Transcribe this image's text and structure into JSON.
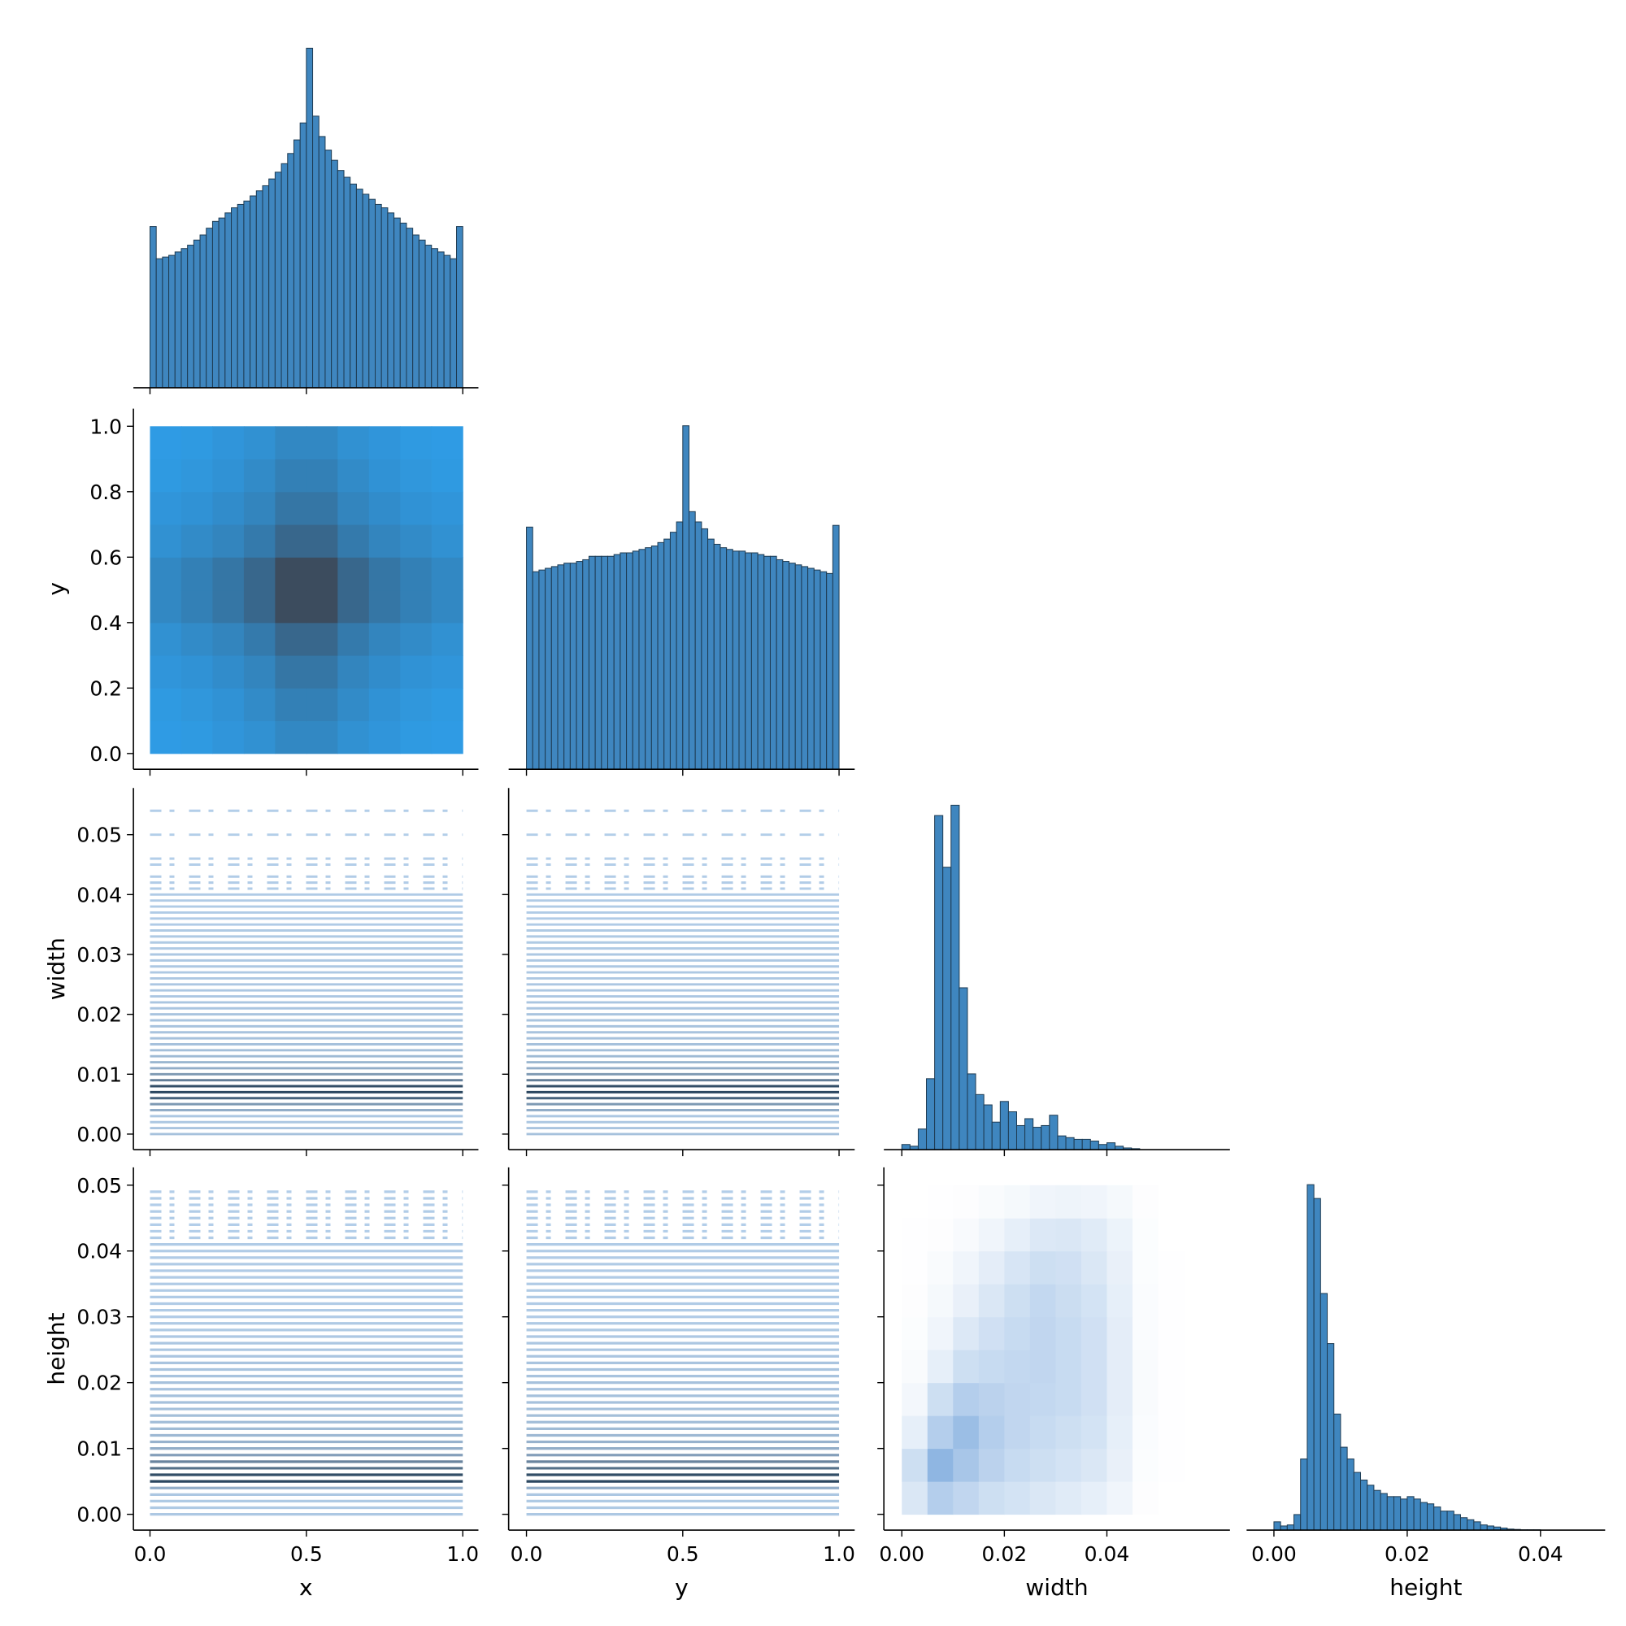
{
  "chart_data": [
    {
      "type": "histogram",
      "color": "#3f86bf",
      "edgecolor": "#1e3b52",
      "bins": [
        0,
        0.02,
        0.04,
        0.06,
        0.08,
        0.1,
        0.12,
        0.14,
        0.16,
        0.18,
        0.2,
        0.22,
        0.24,
        0.26,
        0.28,
        0.3,
        0.32,
        0.34,
        0.36,
        0.38,
        0.4,
        0.42,
        0.44,
        0.46,
        0.48,
        0.5,
        0.52,
        0.54,
        0.56,
        0.58,
        0.6,
        0.62,
        0.64,
        0.66,
        0.68,
        0.7,
        0.72,
        0.74,
        0.76,
        0.78,
        0.8,
        0.82,
        0.84,
        0.86,
        0.88,
        0.9,
        0.92,
        0.94,
        0.96,
        0.98,
        1
      ],
      "counts": [
        47.5,
        38,
        38.5,
        39,
        40,
        41,
        42,
        43.5,
        45,
        47,
        49,
        50,
        51.5,
        53,
        54,
        55,
        56.5,
        58,
        59.5,
        61.5,
        63.5,
        66,
        69,
        73,
        78,
        100,
        80,
        74,
        70,
        67,
        64,
        62,
        60,
        58.5,
        57,
        55.5,
        54,
        53,
        51.5,
        50,
        48.5,
        47,
        45,
        43.5,
        42,
        41,
        40,
        39,
        38,
        47.5
      ],
      "xlim": [
        -0.053,
        1.05
      ],
      "ylim": [
        0,
        105
      ],
      "xticks": [
        0,
        0.5,
        1
      ]
    },
    {
      "type": "hist2d",
      "colors": [
        "#2f9be4",
        "#3c4c5e"
      ],
      "xbins": [
        0,
        0.1,
        0.2,
        0.3,
        0.4,
        0.5,
        0.6,
        0.7,
        0.8,
        0.9,
        1
      ],
      "ybins": [
        0,
        0.1,
        0.2,
        0.3,
        0.4,
        0.5,
        0.6,
        0.7,
        0.8,
        0.9,
        1
      ],
      "counts": [
        [
          7,
          8,
          11,
          14,
          20,
          20,
          14,
          11,
          8,
          7
        ],
        [
          8,
          10,
          13,
          18,
          25,
          25,
          18,
          13,
          10,
          8
        ],
        [
          11,
          13,
          17,
          22,
          32,
          32,
          22,
          17,
          13,
          11
        ],
        [
          14,
          18,
          22,
          29,
          42,
          42,
          29,
          22,
          18,
          14
        ],
        [
          20,
          25,
          32,
          42,
          60,
          60,
          42,
          32,
          25,
          20
        ],
        [
          20,
          25,
          32,
          42,
          60,
          60,
          42,
          32,
          25,
          20
        ],
        [
          14,
          18,
          22,
          29,
          42,
          42,
          29,
          22,
          18,
          14
        ],
        [
          11,
          13,
          17,
          22,
          32,
          32,
          22,
          17,
          13,
          11
        ],
        [
          8,
          10,
          13,
          18,
          25,
          25,
          18,
          13,
          10,
          8
        ],
        [
          7,
          8,
          11,
          14,
          20,
          20,
          14,
          11,
          8,
          7
        ]
      ],
      "xlim": [
        -0.053,
        1.05
      ],
      "ylim": [
        -0.048,
        1.054
      ],
      "xticks": [
        0,
        0.5,
        1
      ],
      "ylabel": "y",
      "yticks": [
        {
          "value": 0,
          "label": "0.0"
        },
        {
          "value": 0.2,
          "label": "0.2"
        },
        {
          "value": 0.4,
          "label": "0.4"
        },
        {
          "value": 0.6,
          "label": "0.6"
        },
        {
          "value": 0.8,
          "label": "0.8"
        },
        {
          "value": 1,
          "label": "1.0"
        }
      ]
    },
    {
      "type": "histogram",
      "color": "#3f86bf",
      "edgecolor": "#1e3b52",
      "bins": [
        0,
        0.02,
        0.04,
        0.06,
        0.08,
        0.1,
        0.12,
        0.14,
        0.16,
        0.18,
        0.2,
        0.22,
        0.24,
        0.26,
        0.28,
        0.3,
        0.32,
        0.34,
        0.36,
        0.38,
        0.4,
        0.42,
        0.44,
        0.46,
        0.48,
        0.5,
        0.52,
        0.54,
        0.56,
        0.58,
        0.6,
        0.62,
        0.64,
        0.66,
        0.68,
        0.7,
        0.72,
        0.74,
        0.76,
        0.78,
        0.8,
        0.82,
        0.84,
        0.86,
        0.88,
        0.9,
        0.92,
        0.94,
        0.96,
        0.98,
        1
      ],
      "counts": [
        70.5,
        57.5,
        58,
        58.5,
        59,
        59.5,
        60,
        60,
        60.5,
        61,
        62,
        62,
        62,
        62,
        62.5,
        63,
        63,
        63.5,
        64,
        64.5,
        65,
        66,
        67,
        69,
        72,
        100,
        75,
        72,
        70,
        67,
        65.5,
        64.5,
        64,
        63.5,
        63.5,
        63,
        63,
        62.5,
        62,
        62,
        61,
        60.5,
        60,
        59.5,
        59,
        58.5,
        58,
        57.5,
        57,
        71
      ],
      "xlim": [
        -0.057,
        1.05
      ],
      "ylim": [
        0,
        105
      ],
      "xticks": [
        0,
        0.5,
        1
      ]
    },
    {
      "type": "hlines",
      "colors": [
        "#b4cfea",
        "#2b4760"
      ],
      "xrange": [
        0,
        1
      ],
      "levels": [
        0,
        0.001,
        0.002,
        0.003,
        0.004,
        0.005,
        0.006,
        0.007,
        0.008,
        0.009,
        0.01,
        0.011,
        0.012,
        0.013,
        0.014,
        0.015,
        0.016,
        0.017,
        0.018,
        0.019,
        0.02,
        0.021,
        0.022,
        0.023,
        0.024,
        0.025,
        0.026,
        0.027,
        0.028,
        0.029,
        0.03,
        0.031,
        0.032,
        0.033,
        0.034,
        0.035,
        0.036,
        0.037,
        0.038,
        0.039,
        0.04,
        0.041,
        0.042,
        0.043,
        0.045,
        0.046,
        0.05,
        0.054
      ],
      "density": [
        10,
        8,
        6,
        6,
        25,
        40,
        80,
        100,
        95,
        60,
        40,
        25,
        18,
        15,
        12,
        10,
        10,
        9,
        9,
        8,
        8,
        7,
        7,
        6,
        6,
        6,
        6,
        5,
        5,
        5,
        5,
        4,
        4,
        4,
        4,
        3,
        3,
        3,
        3,
        3,
        3,
        2,
        2,
        2,
        1,
        1,
        1,
        1
      ],
      "xlim": [
        -0.053,
        1.05
      ],
      "ylim": [
        -0.0026,
        0.0578
      ],
      "xticks": [
        0,
        0.5,
        1
      ],
      "ylabel": "width",
      "yticks": [
        {
          "value": 0,
          "label": "0.00"
        },
        {
          "value": 0.01,
          "label": "0.01"
        },
        {
          "value": 0.02,
          "label": "0.02"
        },
        {
          "value": 0.03,
          "label": "0.03"
        },
        {
          "value": 0.04,
          "label": "0.04"
        },
        {
          "value": 0.05,
          "label": "0.05"
        }
      ]
    },
    {
      "type": "hlines",
      "colors": [
        "#b4cfea",
        "#2b4760"
      ],
      "xrange": [
        0,
        1
      ],
      "levels": [
        0,
        0.001,
        0.002,
        0.003,
        0.004,
        0.005,
        0.006,
        0.007,
        0.008,
        0.009,
        0.01,
        0.011,
        0.012,
        0.013,
        0.014,
        0.015,
        0.016,
        0.017,
        0.018,
        0.019,
        0.02,
        0.021,
        0.022,
        0.023,
        0.024,
        0.025,
        0.026,
        0.027,
        0.028,
        0.029,
        0.03,
        0.031,
        0.032,
        0.033,
        0.034,
        0.035,
        0.036,
        0.037,
        0.038,
        0.039,
        0.04,
        0.041,
        0.042,
        0.043,
        0.045,
        0.046,
        0.05,
        0.054
      ],
      "density": [
        10,
        8,
        6,
        6,
        25,
        40,
        80,
        100,
        95,
        60,
        40,
        25,
        18,
        15,
        12,
        10,
        10,
        9,
        9,
        8,
        8,
        7,
        7,
        6,
        6,
        6,
        6,
        5,
        5,
        5,
        5,
        4,
        4,
        4,
        4,
        3,
        3,
        3,
        3,
        3,
        3,
        2,
        2,
        2,
        1,
        1,
        1,
        1
      ],
      "xlim": [
        -0.057,
        1.05
      ],
      "ylim": [
        -0.0026,
        0.0578
      ],
      "xticks": [
        0,
        0.5,
        1
      ],
      "yticks": [
        0,
        0.01,
        0.02,
        0.03,
        0.04,
        0.05
      ]
    },
    {
      "type": "histogram",
      "color": "#3f86bf",
      "edgecolor": "#1e3b52",
      "bins": [
        0,
        0.0016,
        0.0032,
        0.0048,
        0.0064,
        0.008,
        0.0096,
        0.0112,
        0.0128,
        0.0144,
        0.016,
        0.0176,
        0.0192,
        0.0208,
        0.0224,
        0.024,
        0.0256,
        0.0272,
        0.0288,
        0.0304,
        0.032,
        0.0336,
        0.0352,
        0.0368,
        0.0384,
        0.04,
        0.0416,
        0.0432,
        0.0448,
        0.0464
      ],
      "counts": [
        1.5,
        1,
        6,
        20.6,
        97,
        82,
        100,
        47,
        22,
        16,
        13,
        8,
        14,
        11,
        7,
        9,
        6.5,
        7,
        10,
        4,
        3.5,
        3,
        3,
        2.5,
        1.5,
        2,
        1,
        0.5,
        0.3
      ],
      "xlim": [
        -0.0035,
        0.064
      ],
      "ylim": [
        0,
        105
      ],
      "xticks": [
        0,
        0.02,
        0.04
      ]
    },
    {
      "type": "hlines",
      "colors": [
        "#b4cfea",
        "#2b4760"
      ],
      "xrange": [
        0,
        1
      ],
      "levels": [
        0,
        0.001,
        0.002,
        0.003,
        0.004,
        0.005,
        0.006,
        0.007,
        0.008,
        0.009,
        0.01,
        0.011,
        0.012,
        0.013,
        0.014,
        0.015,
        0.016,
        0.017,
        0.018,
        0.019,
        0.02,
        0.021,
        0.022,
        0.023,
        0.024,
        0.025,
        0.026,
        0.027,
        0.028,
        0.029,
        0.03,
        0.031,
        0.032,
        0.033,
        0.034,
        0.035,
        0.036,
        0.037,
        0.038,
        0.039,
        0.04,
        0.041,
        0.042,
        0.043,
        0.044,
        0.045,
        0.046,
        0.047,
        0.048,
        0.049
      ],
      "density": [
        5,
        4,
        4,
        6,
        25,
        100,
        95,
        70,
        55,
        35,
        25,
        21,
        17,
        15,
        13,
        12,
        11,
        10,
        10,
        9,
        10,
        9,
        8,
        8,
        7,
        6,
        6,
        5,
        4,
        4,
        3,
        3,
        3,
        3,
        3,
        3,
        3,
        3,
        3,
        3,
        3,
        3,
        2,
        1,
        1,
        2,
        2,
        1,
        2,
        1
      ],
      "xlim": [
        -0.053,
        1.05
      ],
      "ylim": [
        -0.0024,
        0.0527
      ],
      "xlabel": "x",
      "ylabel": "height",
      "xticks": [
        {
          "value": 0,
          "label": "0.0"
        },
        {
          "value": 0.5,
          "label": "0.5"
        },
        {
          "value": 1,
          "label": "1.0"
        }
      ],
      "yticks": [
        {
          "value": 0,
          "label": "0.00"
        },
        {
          "value": 0.01,
          "label": "0.01"
        },
        {
          "value": 0.02,
          "label": "0.02"
        },
        {
          "value": 0.03,
          "label": "0.03"
        },
        {
          "value": 0.04,
          "label": "0.04"
        },
        {
          "value": 0.05,
          "label": "0.05"
        }
      ]
    },
    {
      "type": "hlines",
      "colors": [
        "#b4cfea",
        "#2b4760"
      ],
      "xrange": [
        0,
        1
      ],
      "levels": [
        0,
        0.001,
        0.002,
        0.003,
        0.004,
        0.005,
        0.006,
        0.007,
        0.008,
        0.009,
        0.01,
        0.011,
        0.012,
        0.013,
        0.014,
        0.015,
        0.016,
        0.017,
        0.018,
        0.019,
        0.02,
        0.021,
        0.022,
        0.023,
        0.024,
        0.025,
        0.026,
        0.027,
        0.028,
        0.029,
        0.03,
        0.031,
        0.032,
        0.033,
        0.034,
        0.035,
        0.036,
        0.037,
        0.038,
        0.039,
        0.04,
        0.041,
        0.042,
        0.043,
        0.044,
        0.045,
        0.046,
        0.047,
        0.048,
        0.049
      ],
      "density": [
        5,
        4,
        4,
        6,
        25,
        100,
        95,
        70,
        55,
        35,
        25,
        21,
        17,
        15,
        13,
        12,
        11,
        10,
        10,
        9,
        10,
        9,
        8,
        8,
        7,
        6,
        6,
        5,
        4,
        4,
        3,
        3,
        3,
        3,
        3,
        3,
        3,
        3,
        3,
        3,
        3,
        3,
        2,
        1,
        1,
        2,
        2,
        1,
        2,
        1
      ],
      "xlim": [
        -0.057,
        1.05
      ],
      "ylim": [
        -0.0024,
        0.0527
      ],
      "xlabel": "y",
      "xticks": [
        {
          "value": 0,
          "label": "0.0"
        },
        {
          "value": 0.5,
          "label": "0.5"
        },
        {
          "value": 1,
          "label": "1.0"
        }
      ],
      "yticks": [
        0,
        0.01,
        0.02,
        0.03,
        0.04,
        0.05
      ]
    },
    {
      "type": "hist2d",
      "colors": [
        "#ffffff",
        "#8fb6e2"
      ],
      "xbins": [
        0,
        0.005,
        0.01,
        0.015,
        0.02,
        0.025,
        0.03,
        0.035,
        0.04,
        0.045,
        0.05,
        0.055
      ],
      "ybins": [
        0,
        0.005,
        0.01,
        0.015,
        0.02,
        0.025,
        0.03,
        0.035,
        0.04,
        0.045,
        0.05
      ],
      "counts": [
        [
          30,
          60,
          50,
          40,
          35,
          30,
          25,
          20,
          12,
          2,
          0
        ],
        [
          40,
          90,
          70,
          55,
          45,
          40,
          35,
          30,
          18,
          3,
          1
        ],
        [
          20,
          60,
          80,
          60,
          50,
          45,
          40,
          35,
          20,
          4,
          1
        ],
        [
          10,
          40,
          60,
          55,
          50,
          48,
          45,
          38,
          22,
          5,
          1
        ],
        [
          5,
          20,
          40,
          45,
          48,
          50,
          45,
          38,
          22,
          5,
          1
        ],
        [
          3,
          12,
          28,
          38,
          45,
          50,
          45,
          38,
          22,
          4,
          1
        ],
        [
          2,
          8,
          18,
          30,
          40,
          48,
          42,
          35,
          20,
          4,
          1
        ],
        [
          1,
          5,
          12,
          22,
          32,
          40,
          38,
          30,
          18,
          3,
          1
        ],
        [
          1,
          2,
          6,
          12,
          20,
          28,
          30,
          25,
          15,
          3,
          0
        ],
        [
          0,
          1,
          2,
          5,
          8,
          12,
          14,
          12,
          8,
          2,
          0
        ]
      ],
      "xlim": [
        -0.0035,
        0.064
      ],
      "ylim": [
        -0.0024,
        0.0527
      ],
      "xlabel": "width",
      "xticks": [
        {
          "value": 0,
          "label": "0.00"
        },
        {
          "value": 0.02,
          "label": "0.02"
        },
        {
          "value": 0.04,
          "label": "0.04"
        }
      ],
      "yticks": [
        0,
        0.01,
        0.02,
        0.03,
        0.04,
        0.05
      ]
    },
    {
      "type": "histogram",
      "color": "#3f86bf",
      "edgecolor": "#1e3b52",
      "bins": [
        0,
        0.001,
        0.002,
        0.003,
        0.004,
        0.005,
        0.006,
        0.007,
        0.008,
        0.009,
        0.01,
        0.011,
        0.012,
        0.013,
        0.014,
        0.015,
        0.016,
        0.017,
        0.018,
        0.019,
        0.02,
        0.021,
        0.022,
        0.023,
        0.024,
        0.025,
        0.026,
        0.027,
        0.028,
        0.029,
        0.03,
        0.031,
        0.032,
        0.033,
        0.034,
        0.035,
        0.036,
        0.037,
        0.038,
        0.039,
        0.04
      ],
      "counts": [
        2.4,
        1.2,
        1.5,
        4.5,
        20.6,
        100,
        96,
        68.5,
        54,
        33.6,
        24,
        20.6,
        16.7,
        14.5,
        13,
        11.5,
        10.6,
        9.7,
        9.7,
        9,
        9.7,
        9,
        8,
        7.6,
        6.7,
        5.5,
        5.5,
        4.5,
        3.6,
        3,
        2.4,
        1.5,
        1.2,
        0.9,
        0.6,
        0.3,
        0.2,
        0.1,
        0.1,
        0.1
      ],
      "xlim": [
        -0.0041,
        0.0497
      ],
      "ylim": [
        0,
        105
      ],
      "xlabel": "height",
      "xticks": [
        {
          "value": 0,
          "label": "0.00"
        },
        {
          "value": 0.02,
          "label": "0.02"
        },
        {
          "value": 0.04,
          "label": "0.04"
        }
      ]
    }
  ]
}
